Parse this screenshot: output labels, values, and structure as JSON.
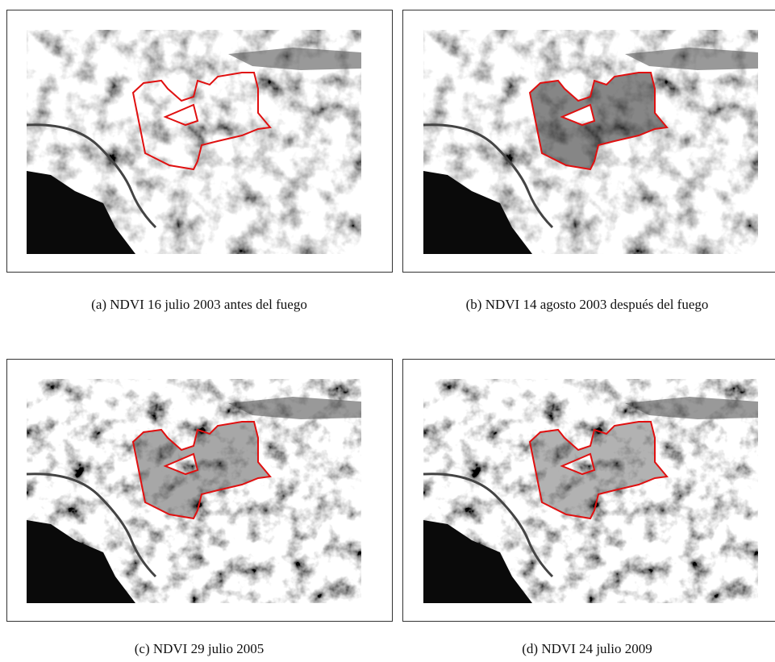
{
  "figures": [
    {
      "caption": "(a) NDVI 16 julio 2003 antes del fuego"
    },
    {
      "caption": "(b) NDVI 14 agosto 2003 después del fuego"
    },
    {
      "caption": "(c) NDVI 29 julio 2005"
    },
    {
      "caption": "(d) NDVI 24 julio 2009"
    }
  ]
}
